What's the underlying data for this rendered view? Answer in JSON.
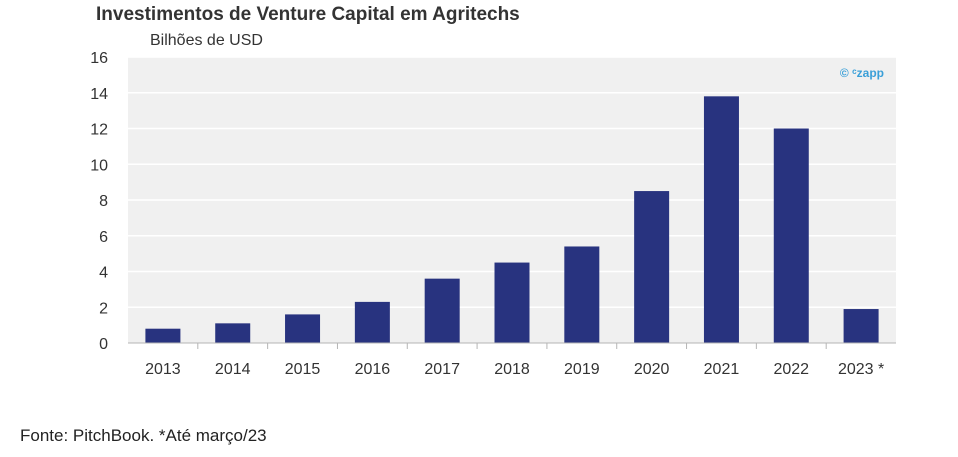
{
  "chart_data": {
    "type": "bar",
    "title": "Investimentos de Venture Capital em Agritechs",
    "ylabel": "Bilhões de USD",
    "xlabel": "",
    "categories": [
      "2013",
      "2014",
      "2015",
      "2016",
      "2017",
      "2018",
      "2019",
      "2020",
      "2021",
      "2022",
      "2023 *"
    ],
    "values": [
      0.8,
      1.1,
      1.6,
      2.3,
      3.6,
      4.5,
      5.4,
      8.5,
      13.8,
      12.0,
      1.9
    ],
    "ylim": [
      0,
      16
    ],
    "yticks": [
      0,
      2,
      4,
      6,
      8,
      10,
      12,
      14,
      16
    ],
    "grid": true,
    "legend": "none",
    "watermark": "© ᶜzapp",
    "source": "Fonte: PitchBook. *Até março/23",
    "colors": {
      "bar": "#28337f",
      "plot_background": "#f0f0f0",
      "gridline": "#ffffff",
      "watermark": "#3a9fd8"
    }
  }
}
